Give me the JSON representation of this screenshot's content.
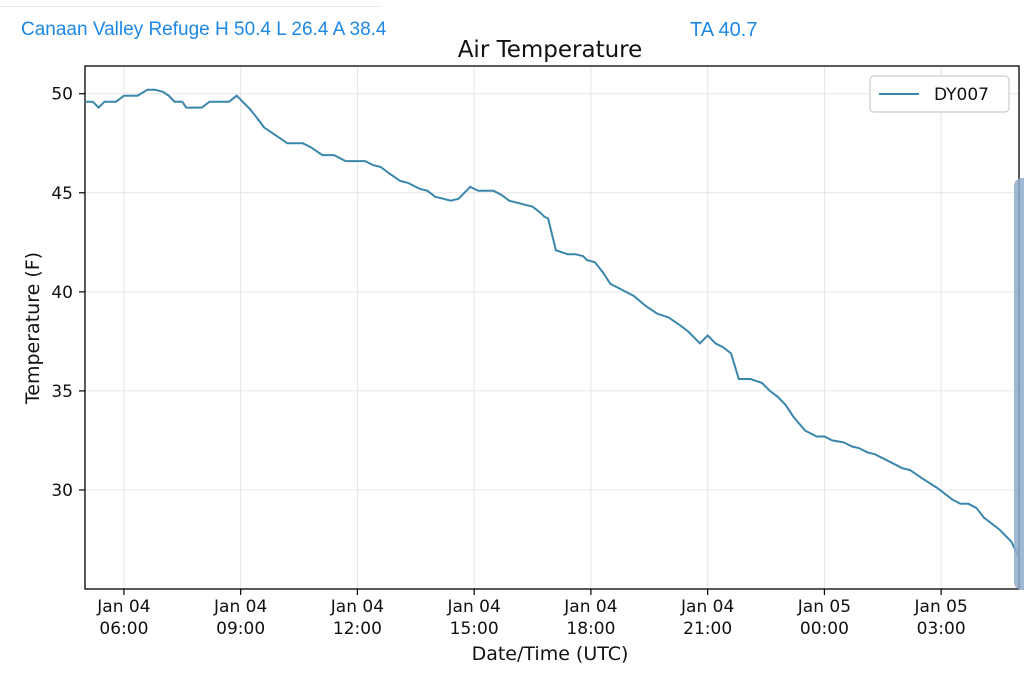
{
  "header": {
    "station_summary": "Canaan Valley Refuge H 50.4 L 26.4 A 38.4",
    "ta_readout": "TA 40.7"
  },
  "colors": {
    "header_text": "#1e88e5",
    "series": "#3b87ab",
    "scrollbar": "#8eaccd"
  },
  "chart_data": {
    "type": "line",
    "title": "Air Temperature",
    "xlabel": "Date/Time (UTC)",
    "ylabel": "Temperature (F)",
    "xlim_hours": [
      5.0,
      29.0
    ],
    "ylim": [
      25,
      51.4
    ],
    "x_unit": "hours since Jan 04 00:00 UTC",
    "yticks": [
      30,
      35,
      40,
      45,
      50
    ],
    "xticks": [
      {
        "hours": 6,
        "line1": "Jan 04",
        "line2": "06:00"
      },
      {
        "hours": 9,
        "line1": "Jan 04",
        "line2": "09:00"
      },
      {
        "hours": 12,
        "line1": "Jan 04",
        "line2": "12:00"
      },
      {
        "hours": 15,
        "line1": "Jan 04",
        "line2": "15:00"
      },
      {
        "hours": 18,
        "line1": "Jan 04",
        "line2": "18:00"
      },
      {
        "hours": 21,
        "line1": "Jan 04",
        "line2": "21:00"
      },
      {
        "hours": 24,
        "line1": "Jan 05",
        "line2": "00:00"
      },
      {
        "hours": 27,
        "line1": "Jan 05",
        "line2": "03:00"
      }
    ],
    "grid": true,
    "legend_position": "top-right",
    "series": [
      {
        "name": "DY007",
        "x": [
          5.0,
          5.2,
          5.35,
          5.5,
          5.65,
          5.8,
          6.0,
          6.2,
          6.35,
          6.6,
          6.8,
          7.0,
          7.15,
          7.3,
          7.5,
          7.6,
          7.8,
          8.0,
          8.2,
          8.4,
          8.6,
          8.7,
          8.9,
          9.05,
          9.25,
          9.45,
          9.6,
          9.9,
          10.2,
          10.6,
          10.8,
          11.1,
          11.4,
          11.7,
          12.0,
          12.2,
          12.4,
          12.6,
          12.8,
          13.1,
          13.3,
          13.6,
          13.8,
          14.0,
          14.2,
          14.4,
          14.6,
          14.75,
          14.9,
          15.1,
          15.3,
          15.5,
          15.7,
          15.9,
          16.1,
          16.3,
          16.5,
          16.7,
          16.8,
          16.9,
          17.1,
          17.4,
          17.6,
          17.8,
          17.9,
          18.1,
          18.3,
          18.5,
          18.8,
          19.1,
          19.4,
          19.7,
          20.0,
          20.3,
          20.5,
          20.7,
          20.8,
          21.0,
          21.2,
          21.4,
          21.6,
          21.8,
          22.1,
          22.4,
          22.6,
          22.8,
          23.0,
          23.2,
          23.5,
          23.8,
          24.0,
          24.2,
          24.5,
          24.7,
          24.9,
          25.1,
          25.3,
          25.6,
          25.8,
          26.0,
          26.2,
          26.5,
          26.9,
          27.1,
          27.3,
          27.5,
          27.7,
          27.9,
          28.1,
          28.5,
          28.8,
          29.0
        ],
        "y": [
          49.6,
          49.6,
          49.3,
          49.6,
          49.6,
          49.6,
          49.9,
          49.9,
          49.9,
          50.2,
          50.2,
          50.1,
          49.9,
          49.6,
          49.6,
          49.3,
          49.3,
          49.3,
          49.6,
          49.6,
          49.6,
          49.6,
          49.9,
          49.6,
          49.2,
          48.7,
          48.3,
          47.9,
          47.5,
          47.5,
          47.3,
          46.9,
          46.9,
          46.6,
          46.6,
          46.6,
          46.4,
          46.3,
          46.0,
          45.6,
          45.5,
          45.2,
          45.1,
          44.8,
          44.7,
          44.6,
          44.7,
          45.0,
          45.3,
          45.1,
          45.1,
          45.1,
          44.9,
          44.6,
          44.5,
          44.4,
          44.3,
          44.0,
          43.8,
          43.7,
          42.1,
          41.9,
          41.9,
          41.8,
          41.6,
          41.5,
          41.0,
          40.4,
          40.1,
          39.8,
          39.3,
          38.9,
          38.7,
          38.3,
          38.0,
          37.6,
          37.4,
          37.8,
          37.4,
          37.2,
          36.9,
          35.6,
          35.6,
          35.4,
          35.0,
          34.7,
          34.3,
          33.7,
          33.0,
          32.7,
          32.7,
          32.5,
          32.4,
          32.2,
          32.1,
          31.9,
          31.8,
          31.5,
          31.3,
          31.1,
          31.0,
          30.6,
          30.1,
          29.8,
          29.5,
          29.3,
          29.3,
          29.1,
          28.6,
          28.0,
          27.4,
          26.6
        ]
      }
    ]
  }
}
